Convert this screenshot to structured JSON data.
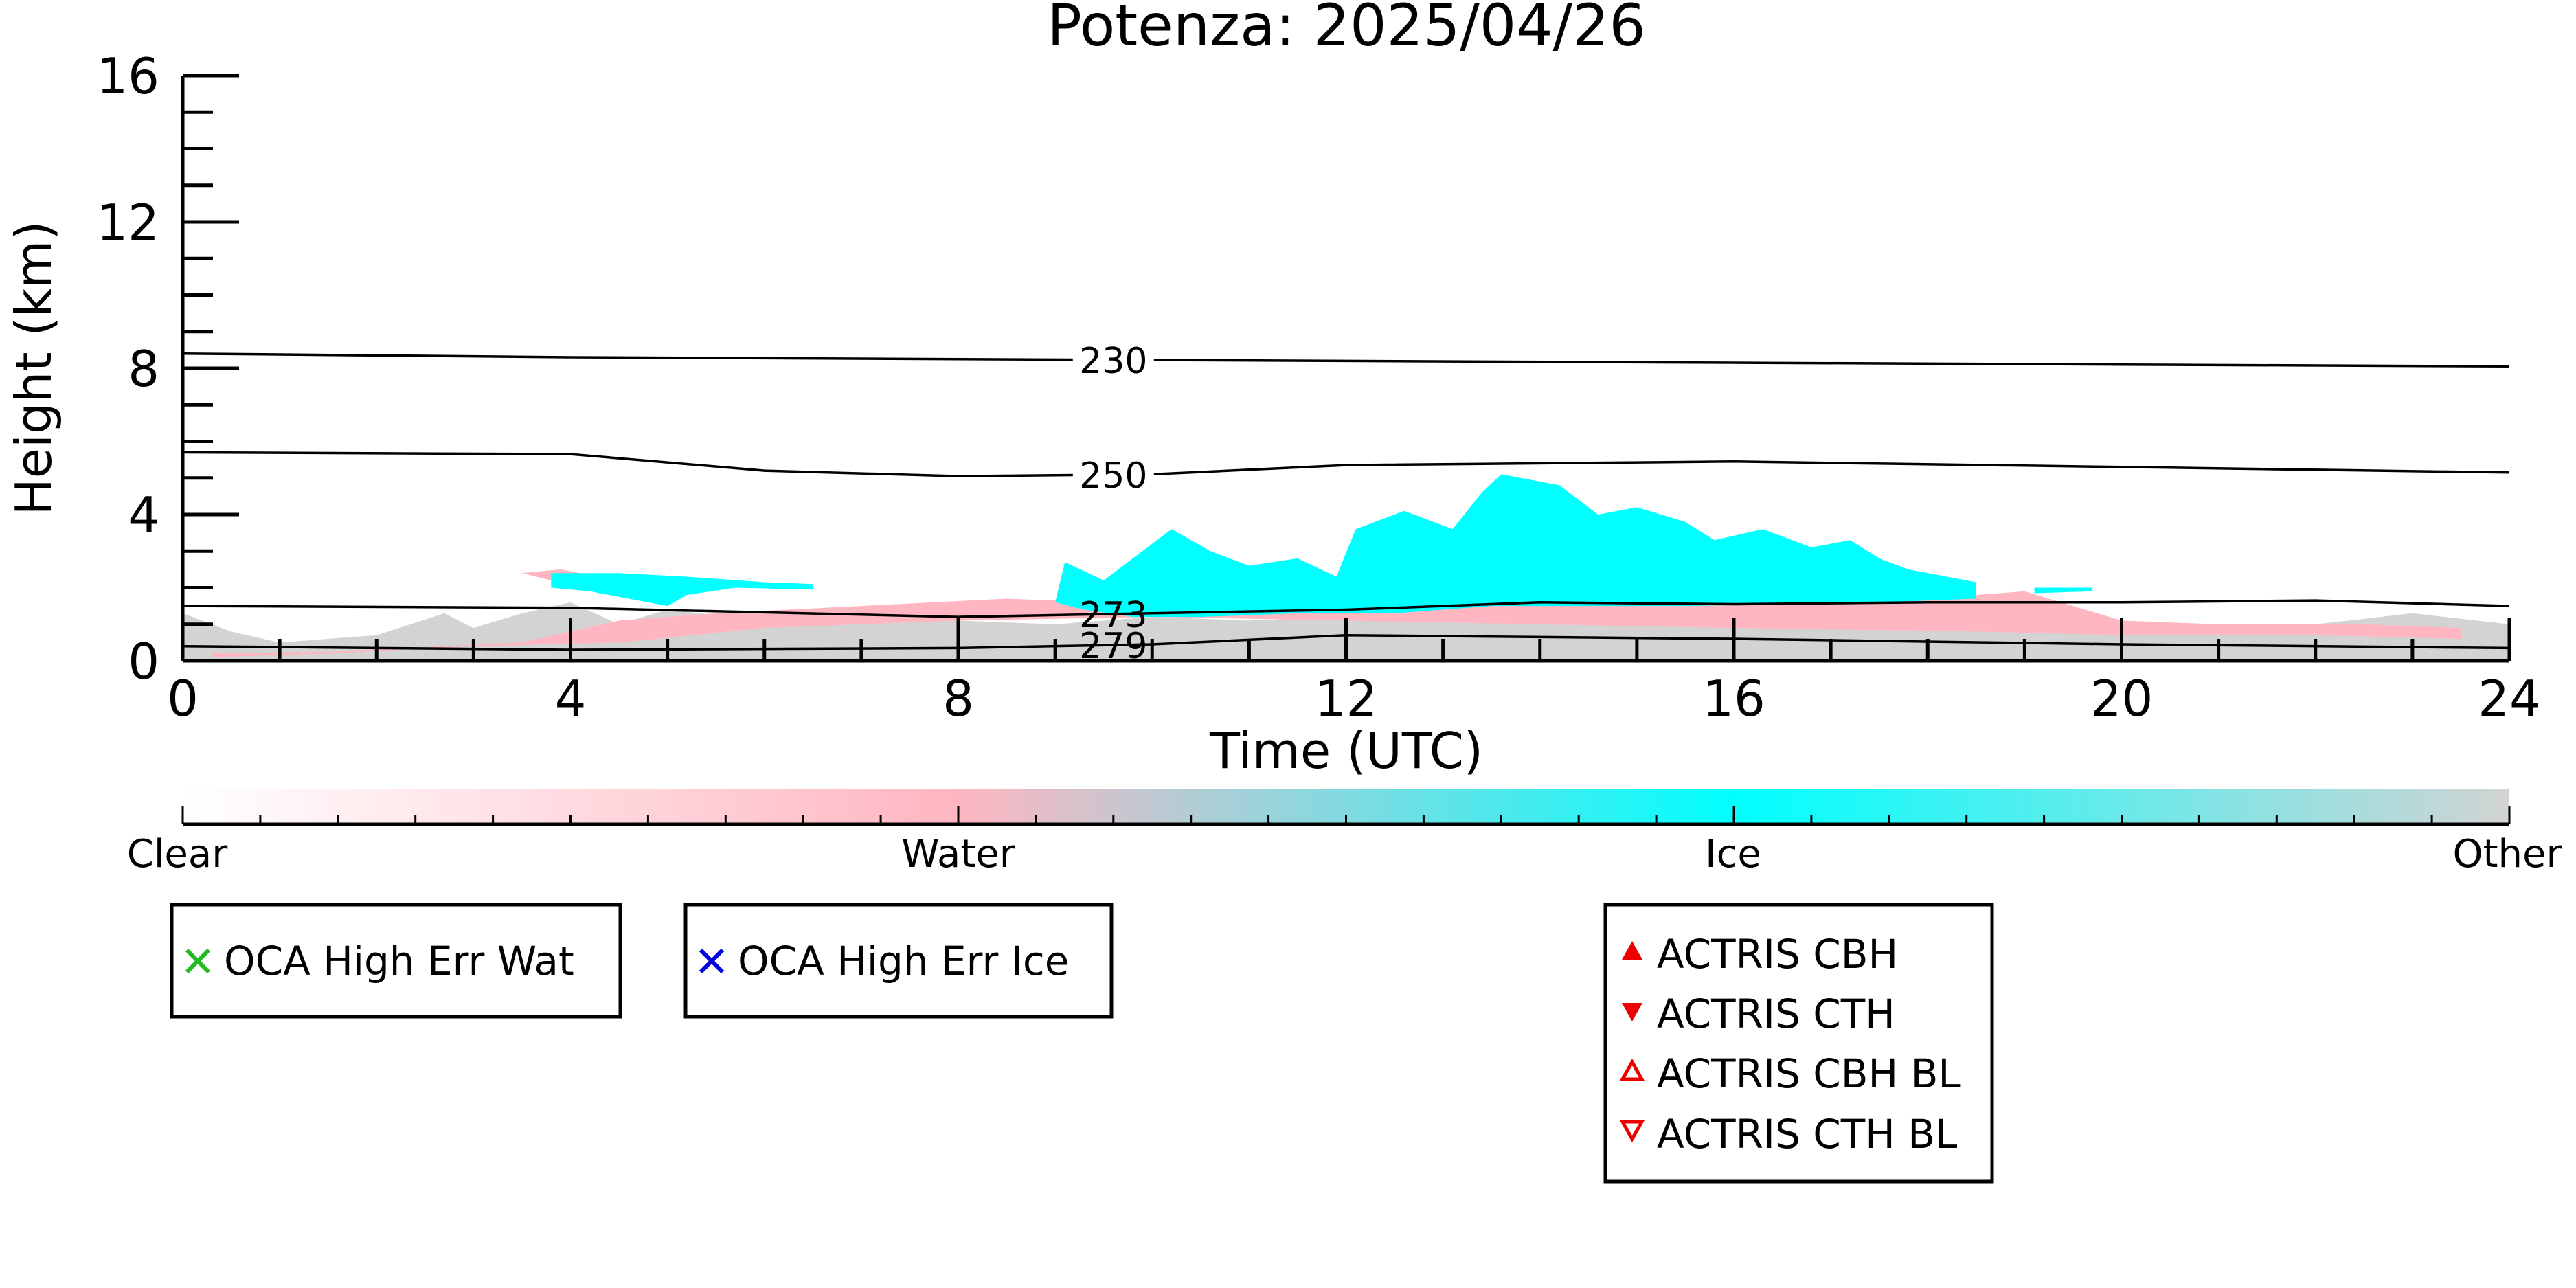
{
  "chart_data": {
    "type": "heatmap",
    "title": "Potenza: 2025/04/26",
    "xlabel": "Time (UTC)",
    "ylabel": "Height (km)",
    "xlim": [
      0,
      24
    ],
    "ylim": [
      0,
      16
    ],
    "x_ticks": [
      0,
      4,
      8,
      12,
      16,
      20,
      24
    ],
    "x_minor_step": 1,
    "y_ticks": [
      0,
      4,
      8,
      12,
      16
    ],
    "y_minor_step": 1,
    "x_tick_labels": [
      "0",
      "4",
      "8",
      "12",
      "16",
      "20",
      "24"
    ],
    "y_tick_labels": [
      "0",
      "4",
      "8",
      "12",
      "16"
    ],
    "grid": false,
    "classes": [
      "Clear",
      "Water",
      "Ice",
      "Other"
    ],
    "colorbar": {
      "stops": [
        {
          "pos": 0,
          "color": "#ffffff"
        },
        {
          "pos": 0.333,
          "color": "#ffb6c1"
        },
        {
          "pos": 0.667,
          "color": "#00ffff"
        },
        {
          "pos": 1,
          "color": "#d3d3d3"
        }
      ]
    },
    "class_colors": {
      "water": "#ffb6c1",
      "ice": "#00ffff",
      "other": "#d3d3d3"
    },
    "regions": [
      {
        "class": "other",
        "points": [
          [
            0,
            0
          ],
          [
            0,
            1.3
          ],
          [
            0.5,
            0.8
          ],
          [
            1,
            0.5
          ],
          [
            2,
            0.7
          ],
          [
            2.7,
            1.3
          ],
          [
            3,
            0.9
          ],
          [
            3.5,
            1.3
          ],
          [
            4,
            1.6
          ],
          [
            4.5,
            1.0
          ],
          [
            5,
            1.4
          ],
          [
            6,
            1.1
          ],
          [
            7,
            1.2
          ],
          [
            8,
            1.1
          ],
          [
            9,
            1.0
          ],
          [
            10,
            1.2
          ],
          [
            11,
            1.1
          ],
          [
            12,
            1.2
          ],
          [
            13,
            1.2
          ],
          [
            14,
            1.4
          ],
          [
            15,
            1.3
          ],
          [
            16,
            1.3
          ],
          [
            17,
            1.3
          ],
          [
            18,
            1.4
          ],
          [
            19,
            1.4
          ],
          [
            20,
            1.0
          ],
          [
            21,
            0.9
          ],
          [
            22,
            1.0
          ],
          [
            23,
            1.3
          ],
          [
            24,
            1.0
          ],
          [
            24,
            0
          ]
        ]
      },
      {
        "class": "water",
        "points": [
          [
            0.3,
            0.2
          ],
          [
            1.5,
            0.25
          ],
          [
            3.5,
            0.5
          ],
          [
            4.5,
            1.1
          ],
          [
            5.5,
            1.3
          ],
          [
            7,
            1.5
          ],
          [
            8.5,
            1.7
          ],
          [
            10.5,
            1.5
          ],
          [
            12,
            1.6
          ],
          [
            14,
            1.7
          ],
          [
            16,
            1.6
          ],
          [
            17.5,
            1.6
          ],
          [
            19,
            1.9
          ],
          [
            20,
            1.1
          ],
          [
            21,
            1.0
          ],
          [
            22.5,
            1.0
          ],
          [
            23.5,
            0.9
          ],
          [
            23.5,
            0.6
          ],
          [
            22,
            0.7
          ],
          [
            20,
            0.7
          ],
          [
            18.5,
            0.8
          ],
          [
            16,
            0.9
          ],
          [
            14,
            1.0
          ],
          [
            12,
            1.1
          ],
          [
            10,
            1.2
          ],
          [
            8,
            1.1
          ],
          [
            6,
            0.9
          ],
          [
            4.5,
            0.5
          ],
          [
            3,
            0.4
          ],
          [
            1.5,
            0.2
          ],
          [
            0.3,
            0.1
          ]
        ]
      },
      {
        "class": "water",
        "points": [
          [
            3.5,
            2.4
          ],
          [
            3.9,
            2.5
          ],
          [
            4.3,
            2.3
          ],
          [
            4.3,
            2.1
          ],
          [
            3.8,
            2.2
          ]
        ]
      },
      {
        "class": "ice",
        "points": [
          [
            3.8,
            2.4
          ],
          [
            4.5,
            2.4
          ],
          [
            5.2,
            2.3
          ],
          [
            6,
            2.15
          ],
          [
            6.5,
            2.1
          ],
          [
            6.5,
            1.95
          ],
          [
            5.7,
            2.0
          ],
          [
            5.2,
            1.8
          ],
          [
            5.0,
            1.5
          ],
          [
            4.6,
            1.7
          ],
          [
            4.2,
            1.9
          ],
          [
            3.8,
            2.0
          ]
        ]
      },
      {
        "class": "ice",
        "points": [
          [
            9.1,
            2.7
          ],
          [
            9.5,
            2.2
          ],
          [
            9.8,
            2.8
          ],
          [
            10.2,
            3.6
          ],
          [
            10.6,
            3.0
          ],
          [
            11,
            2.6
          ],
          [
            11.5,
            2.8
          ],
          [
            11.9,
            2.3
          ],
          [
            12.1,
            3.6
          ],
          [
            12.6,
            4.1
          ],
          [
            13.1,
            3.6
          ],
          [
            13.4,
            4.6
          ],
          [
            13.6,
            5.1
          ],
          [
            14.2,
            4.8
          ],
          [
            14.6,
            4.0
          ],
          [
            15,
            4.2
          ],
          [
            15.5,
            3.8
          ],
          [
            15.8,
            3.3
          ],
          [
            16.3,
            3.6
          ],
          [
            16.8,
            3.1
          ],
          [
            17.2,
            3.3
          ],
          [
            17.5,
            2.8
          ],
          [
            17.8,
            2.5
          ],
          [
            18.2,
            2.3
          ],
          [
            18.5,
            2.15
          ],
          [
            18.5,
            1.7
          ],
          [
            17.5,
            1.6
          ],
          [
            16.5,
            1.55
          ],
          [
            15.5,
            1.5
          ],
          [
            14.5,
            1.5
          ],
          [
            13.5,
            1.5
          ],
          [
            12.5,
            1.3
          ],
          [
            11.5,
            1.3
          ],
          [
            10.5,
            1.2
          ],
          [
            9.8,
            1.2
          ],
          [
            9.3,
            1.4
          ],
          [
            9.0,
            1.6
          ]
        ]
      },
      {
        "class": "ice",
        "points": [
          [
            19.1,
            2.0
          ],
          [
            19.7,
            2.0
          ],
          [
            19.7,
            1.9
          ],
          [
            19.1,
            1.85
          ]
        ]
      }
    ],
    "isotherms": [
      {
        "label": "230",
        "label_x": 9.6,
        "points": [
          [
            0,
            8.4
          ],
          [
            4,
            8.3
          ],
          [
            8,
            8.25
          ],
          [
            12,
            8.2
          ],
          [
            16,
            8.15
          ],
          [
            20,
            8.1
          ],
          [
            24,
            8.05
          ]
        ]
      },
      {
        "label": "250",
        "label_x": 9.6,
        "points": [
          [
            0,
            5.7
          ],
          [
            4,
            5.65
          ],
          [
            6,
            5.2
          ],
          [
            8,
            5.05
          ],
          [
            10,
            5.1
          ],
          [
            12,
            5.35
          ],
          [
            16,
            5.45
          ],
          [
            20,
            5.3
          ],
          [
            24,
            5.15
          ]
        ]
      },
      {
        "label": "273",
        "label_x": 9.6,
        "points": [
          [
            0,
            1.5
          ],
          [
            4,
            1.45
          ],
          [
            8,
            1.2
          ],
          [
            10,
            1.3
          ],
          [
            12,
            1.4
          ],
          [
            14,
            1.6
          ],
          [
            16,
            1.55
          ],
          [
            18,
            1.6
          ],
          [
            20,
            1.6
          ],
          [
            22,
            1.65
          ],
          [
            24,
            1.5
          ]
        ]
      },
      {
        "label": "279",
        "label_x": 9.6,
        "points": [
          [
            0,
            0.4
          ],
          [
            4,
            0.3
          ],
          [
            8,
            0.35
          ],
          [
            10,
            0.45
          ],
          [
            12,
            0.7
          ],
          [
            16,
            0.6
          ],
          [
            20,
            0.45
          ],
          [
            24,
            0.35
          ]
        ]
      }
    ],
    "legends": [
      {
        "items": [
          {
            "symbol": "x",
            "color": "#22bb22",
            "label": "OCA High Err Wat"
          }
        ]
      },
      {
        "items": [
          {
            "symbol": "x",
            "color": "#0000dd",
            "label": "OCA High Err Ice"
          }
        ]
      },
      {
        "items": [
          {
            "symbol": "tri-up",
            "color": "#ee0000",
            "label": "ACTRIS CBH"
          },
          {
            "symbol": "tri-down",
            "color": "#ee0000",
            "label": "ACTRIS CTH"
          },
          {
            "symbol": "tri-up-open",
            "color": "#ee0000",
            "label": "ACTRIS CBH BL"
          },
          {
            "symbol": "tri-down-open",
            "color": "#ee0000",
            "label": "ACTRIS CTH BL"
          }
        ]
      }
    ]
  }
}
